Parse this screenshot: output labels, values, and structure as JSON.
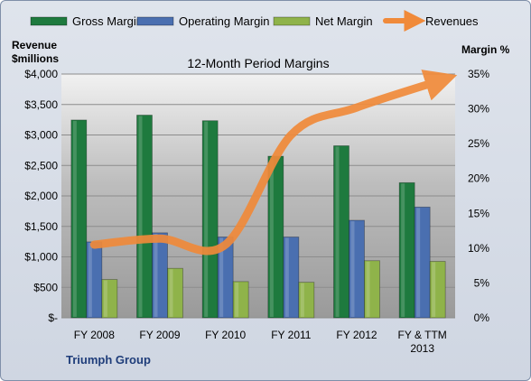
{
  "chart_data": {
    "type": "bar",
    "title": "12-Month Period Margins",
    "company": "Triumph Group",
    "y_left_label_line1": "Revenue",
    "y_left_label_line2": "$millions",
    "y_right_label": "Margin %",
    "categories": [
      [
        "FY 2008"
      ],
      [
        "FY 2009"
      ],
      [
        "FY 2010"
      ],
      [
        "FY 2011"
      ],
      [
        "FY 2012"
      ],
      [
        "FY & TTM",
        "2013"
      ]
    ],
    "y_left_ticks": [
      "$-",
      "$500",
      "$1,000",
      "$1,500",
      "$2,000",
      "$2,500",
      "$3,000",
      "$3,500",
      "$4,000"
    ],
    "y_right_ticks": [
      "0%",
      "5%",
      "10%",
      "15%",
      "20%",
      "25%",
      "30%",
      "35%"
    ],
    "ylim_left": [
      0,
      4000
    ],
    "ylim_right": [
      0,
      35
    ],
    "grid": true,
    "legend_position": "top",
    "series": [
      {
        "name": "Gross Margin",
        "kind": "bar",
        "axis": "right",
        "color": "#1e7a3e",
        "values": [
          28.4,
          29.1,
          28.3,
          23.2,
          24.7,
          19.4
        ]
      },
      {
        "name": "Operating Margin",
        "kind": "bar",
        "axis": "right",
        "color": "#4a6fb0",
        "values": [
          10.9,
          12.2,
          11.6,
          11.6,
          14.0,
          15.9
        ]
      },
      {
        "name": "Net Margin",
        "kind": "bar",
        "axis": "right",
        "color": "#8fb34a",
        "values": [
          5.5,
          7.1,
          5.2,
          5.1,
          8.2,
          8.1
        ]
      },
      {
        "name": "Revenues",
        "kind": "line",
        "axis": "left",
        "color": "#f08a3a",
        "values": [
          1200,
          1300,
          1200,
          3000,
          3450,
          3750
        ]
      }
    ]
  }
}
